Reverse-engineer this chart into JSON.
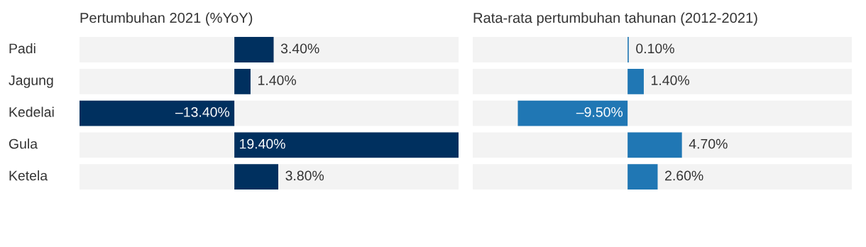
{
  "chart_data": [
    {
      "type": "bar",
      "orientation": "horizontal",
      "title": "Pertumbuhan 2021 (%YoY)",
      "categories": [
        "Padi",
        "Jagung",
        "Kedelai",
        "Gula",
        "Ketela"
      ],
      "xlim": [
        -13.4,
        19.4
      ],
      "tick_labels": "y",
      "grid": false,
      "legend": false,
      "series": [
        {
          "color": "#00305f",
          "values": [
            3.4,
            1.4,
            -13.4,
            19.4,
            3.8
          ],
          "value_labels": [
            "3.40%",
            "1.40%",
            "–13.40%",
            "19.40%",
            "3.80%"
          ]
        }
      ]
    },
    {
      "type": "bar",
      "orientation": "horizontal",
      "title": "Rata-rata pertumbuhan tahunan (2012-2021)",
      "categories": [
        null,
        null,
        null,
        null,
        null
      ],
      "xlim": [
        -13.4,
        19.4
      ],
      "tick_labels": false,
      "grid": false,
      "legend": false,
      "series": [
        {
          "color": "#2077b4",
          "values": [
            0.1,
            1.4,
            -9.5,
            4.7,
            2.6
          ],
          "value_labels": [
            "0.10%",
            "1.40%",
            "–9.50%",
            "4.70%",
            "2.60%"
          ]
        }
      ]
    }
  ]
}
